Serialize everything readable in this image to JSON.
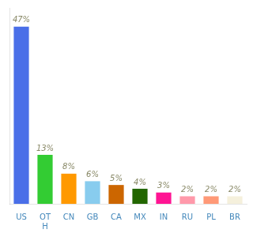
{
  "chart_data": {
    "type": "bar",
    "categories": [
      "US",
      "OT\nH",
      "CN",
      "GB",
      "CA",
      "MX",
      "IN",
      "RU",
      "PL",
      "BR"
    ],
    "values": [
      47,
      13,
      8,
      6,
      5,
      4,
      3,
      2,
      2,
      2
    ],
    "value_labels": [
      "47%",
      "13%",
      "8%",
      "6%",
      "5%",
      "4%",
      "3%",
      "2%",
      "2%",
      "2%"
    ],
    "colors": [
      "#4a6fe8",
      "#33cc33",
      "#ff9900",
      "#88ccee",
      "#cc6600",
      "#226600",
      "#ff1493",
      "#ff99aa",
      "#ff9977",
      "#f5f0dc"
    ],
    "ylim": [
      0,
      52
    ],
    "grid": false,
    "data_labels": true,
    "tick_labels": "x"
  }
}
